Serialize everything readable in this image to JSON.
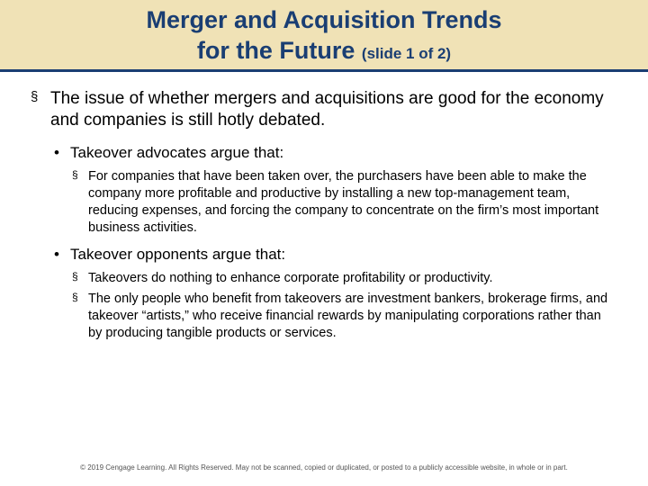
{
  "title_band_bg": "#f0e2b6",
  "title_color": "#1a3e73",
  "title_line1": "Merger and Acquisition Trends",
  "title_line2_main": "for the Future",
  "title_line2_sub": "(slide 1 of 2)",
  "title_fontsize_main": 27,
  "title_fontsize_sub": 17,
  "body": {
    "lvl1_text": "The issue of whether mergers and acquisitions are good for the economy and companies is still hotly debated.",
    "lvl1_fontsize": 19,
    "lvl2": [
      {
        "text": "Takeover advocates argue that:",
        "lvl3": [
          "For companies that have been taken over, the purchasers have been able to make the company more profitable and productive by installing a new top-management team, reducing expenses, and forcing the company to concentrate on the firm’s most important business activities."
        ]
      },
      {
        "text": "Takeover opponents argue that:",
        "lvl3": [
          "Takeovers do nothing to enhance corporate profitability or productivity.",
          "The only people who benefit from takeovers are investment bankers, brokerage firms, and takeover “artists,” who receive financial rewards by manipulating corporations rather than by producing tangible products or services."
        ]
      }
    ],
    "lvl2_fontsize": 17,
    "lvl3_fontsize": 14.5
  },
  "footer": "© 2019 Cengage Learning. All Rights Reserved. May not be scanned, copied or duplicated, or posted to a publicly accessible website, in whole or in part.",
  "footer_fontsize": 8,
  "background_color": "#ffffff",
  "underline_color": "#1a3e73",
  "text_color": "#000000"
}
